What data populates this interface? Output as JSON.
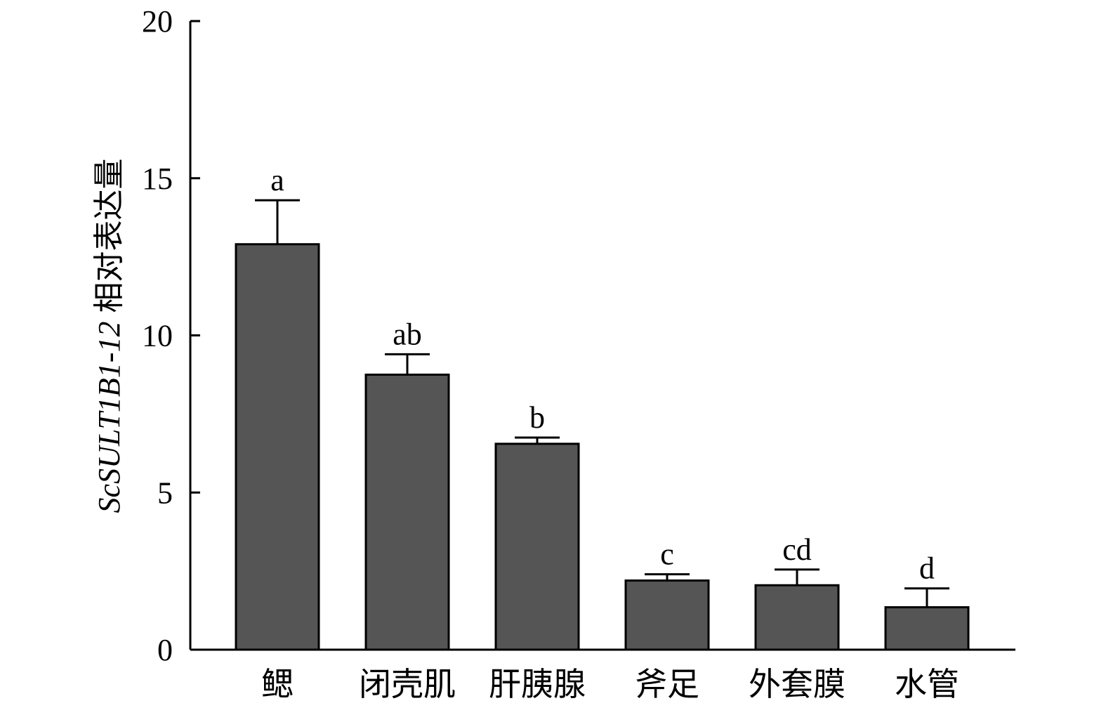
{
  "chart_data": {
    "type": "bar",
    "categories": [
      "鳃",
      "闭壳肌",
      "肝胰腺",
      "斧足",
      "外套膜",
      "水管"
    ],
    "values": [
      12.9,
      8.75,
      6.55,
      2.2,
      2.05,
      1.35
    ],
    "errors": [
      1.4,
      0.65,
      0.2,
      0.2,
      0.5,
      0.6
    ],
    "significance": [
      "a",
      "ab",
      "b",
      "c",
      "cd",
      "d"
    ],
    "title": "",
    "xlabel": "",
    "ylabel_gene": "ScSULT1B1-12",
    "ylabel_text": "相对表达量",
    "ylim": [
      0,
      20
    ],
    "yticks": [
      "0",
      "5",
      "10",
      "15",
      "20"
    ],
    "grid": false,
    "colors": {
      "bar_fill": "#555555",
      "bar_stroke": "#000000",
      "axis": "#000000"
    }
  }
}
